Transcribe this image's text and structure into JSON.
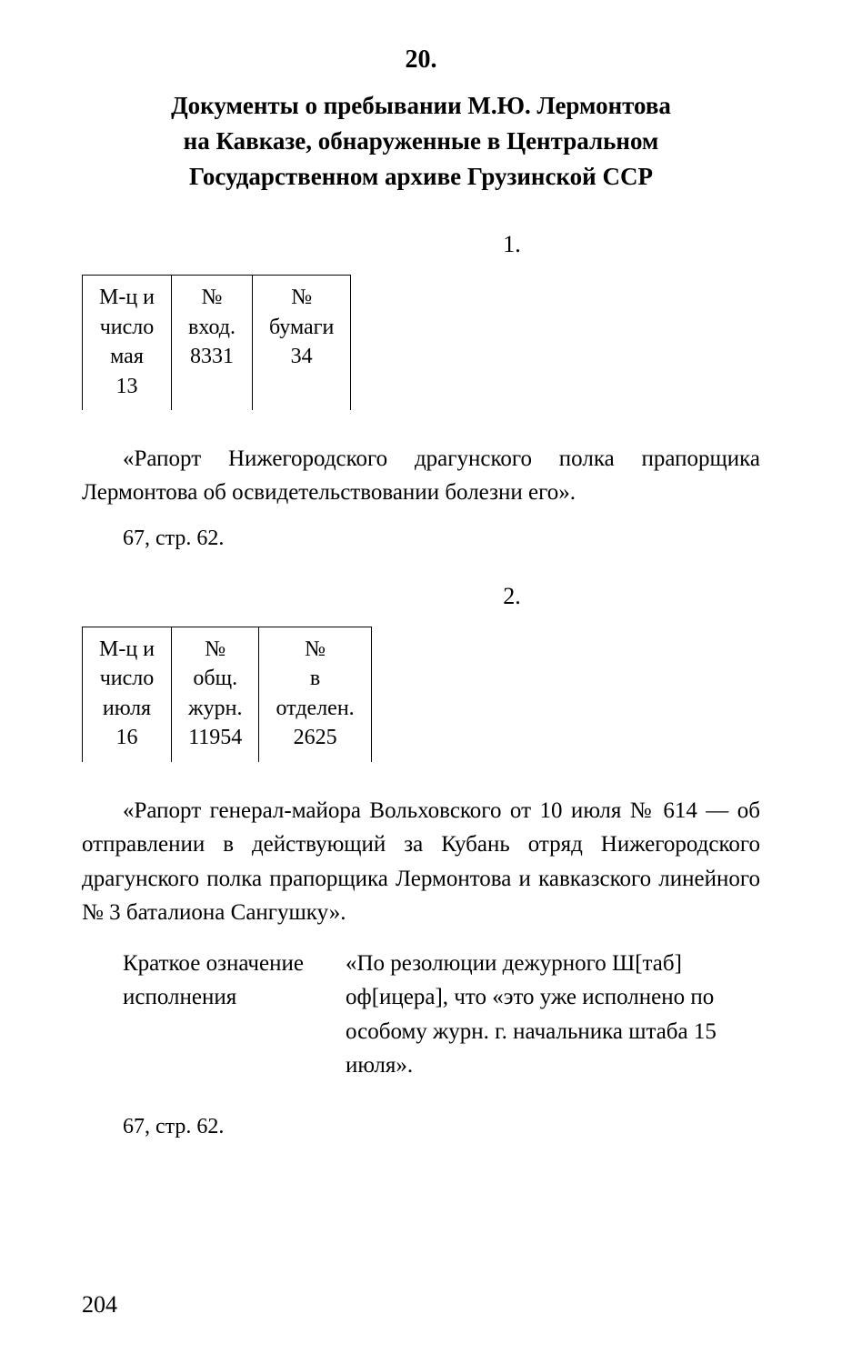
{
  "section_number": "20.",
  "main_title_line1": "Документы о пребывании М.Ю. Лермонтова",
  "main_title_line2": "на Кавказе, обнаруженные в Центральном",
  "main_title_line3": "Государственном архиве Грузинской ССР",
  "entry1": {
    "number": "1.",
    "table": {
      "col1": "М-ц и\nчисло\nмая\n13",
      "col2": "№\nвход.\n8331",
      "col3": "№\nбумаги\n34"
    },
    "quote": "«Рапорт Нижегородского драгунского полка прапорщика Лермонтова об освидетельствовании болезни его».",
    "citation": "67, стр. 62."
  },
  "entry2": {
    "number": "2.",
    "table": {
      "col1": "М-ц и\nчисло\nиюля\n16",
      "col2": "№\nобщ.\nжурн.\n11954",
      "col3": "№\nв\nотделен.\n2625"
    },
    "quote": "«Рапорт генерал-майора Вольховского от 10 июля № 614 — об отправлении в действующий за Кубань отряд Нижегородского драгунского полка прапорщика Лермонтова и кавказского линейного № 3 баталиона Сангушку».",
    "resolution_left": "Краткое означение исполнения",
    "resolution_right": "«По резолюции дежурного Ш[таб] оф[ицера], что «это уже исполнено по особому журн. г. начальника штаба 15 июля».",
    "citation": "67, стр. 62."
  },
  "page_number": "204",
  "colors": {
    "text": "#000000",
    "background": "#ffffff",
    "border": "#000000"
  },
  "fonts": {
    "body_size": 25,
    "title_size": 27,
    "section_num_size": 28
  }
}
